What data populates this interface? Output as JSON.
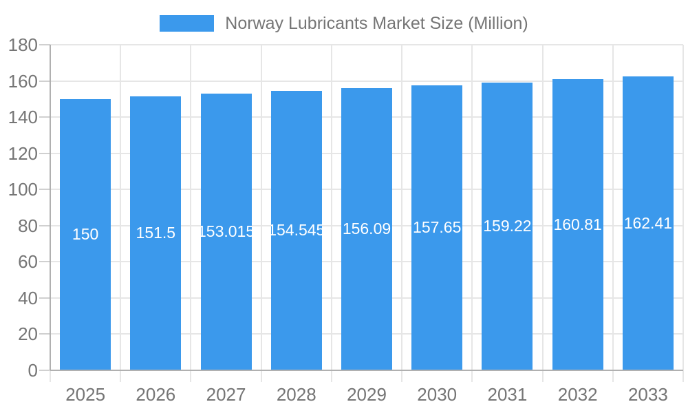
{
  "legend": {
    "label": "Norway Lubricants Market Size (Million)"
  },
  "chart_data": {
    "type": "bar",
    "title": "",
    "xlabel": "",
    "ylabel": "",
    "categories": [
      "2025",
      "2026",
      "2027",
      "2028",
      "2029",
      "2030",
      "2031",
      "2032",
      "2033"
    ],
    "values": [
      150,
      151.5,
      153.015,
      154.545,
      156.09,
      157.65,
      159.22,
      160.81,
      162.41
    ],
    "bar_labels": [
      "150",
      "151.5",
      "153.015",
      "154.545",
      "156.09",
      "157.65",
      "159.22",
      "160.81",
      "162.41"
    ],
    "series_name": "Norway Lubricants Market Size (Million)",
    "ylim": [
      0,
      180
    ],
    "yticks": [
      0,
      20,
      40,
      60,
      80,
      100,
      120,
      140,
      160,
      180
    ],
    "grid": true,
    "legend_position": "top-center"
  },
  "colors": {
    "bar": "#3b99ec",
    "bar_label": "#ffffff",
    "axis_line": "#b0b0b0",
    "gridline": "#e6e6e6",
    "tick": "#d0d0d0",
    "text": "#757575",
    "background": "#ffffff"
  }
}
